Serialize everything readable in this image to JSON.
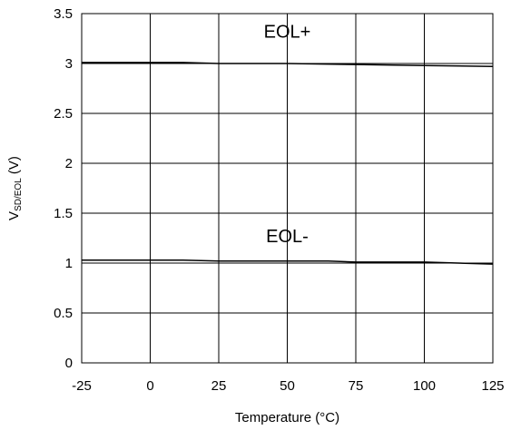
{
  "chart_data": {
    "type": "line",
    "xlabel": "Temperature (°C)",
    "ylabel": {
      "main": "V",
      "sub": "SD/EOL",
      "unit": " (V)"
    },
    "xlim": [
      -25,
      125
    ],
    "ylim": [
      0,
      3.5
    ],
    "xticks": [
      -25,
      0,
      25,
      50,
      75,
      100,
      125
    ],
    "yticks": [
      0,
      0.5,
      1,
      1.5,
      2,
      2.5,
      3,
      3.5
    ],
    "ytick_labels": [
      "0",
      "0.5",
      "1",
      "1.5",
      "2",
      "2.5",
      "3",
      "3.5"
    ],
    "grid": true,
    "series": [
      {
        "name": "EOL+",
        "color": "#000000",
        "x": [
          -25,
          0,
          12,
          25,
          50,
          75,
          100,
          125
        ],
        "y": [
          3.01,
          3.01,
          3.01,
          3.0,
          3.0,
          2.99,
          2.98,
          2.97
        ]
      },
      {
        "name": "EOL-",
        "color": "#000000",
        "x": [
          -25,
          0,
          12,
          25,
          50,
          65,
          75,
          100,
          125
        ],
        "y": [
          1.03,
          1.03,
          1.03,
          1.02,
          1.02,
          1.02,
          1.01,
          1.01,
          0.99
        ]
      }
    ],
    "annotations": [
      {
        "text": "EOL+",
        "x": 50,
        "y": 3.26
      },
      {
        "text": "EOL-",
        "x": 50,
        "y": 1.21
      }
    ]
  }
}
